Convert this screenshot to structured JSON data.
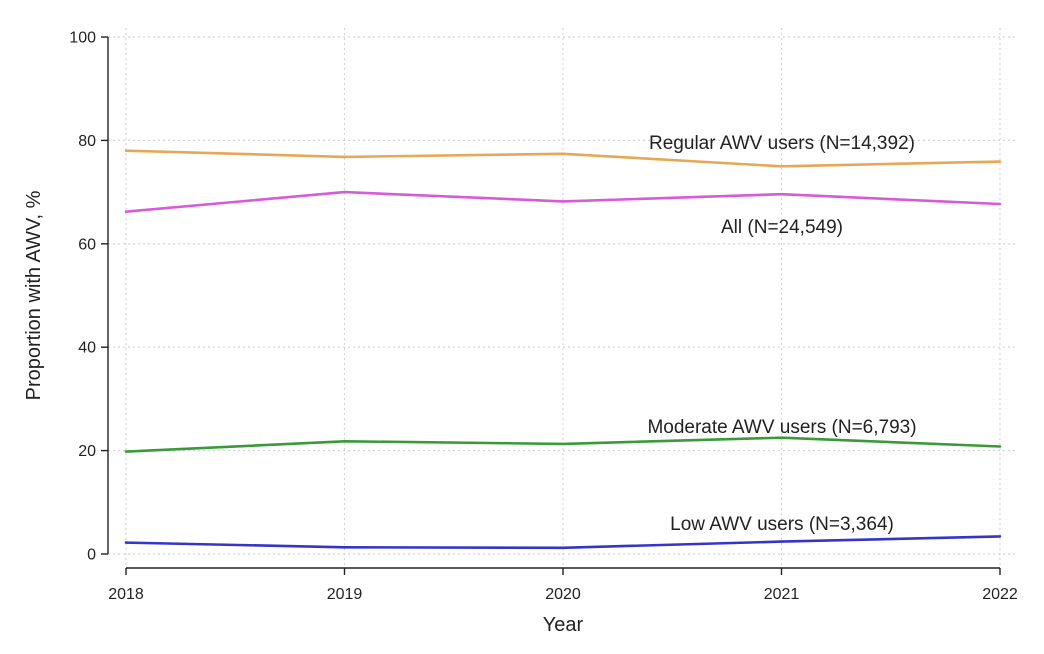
{
  "chart_data": {
    "type": "line",
    "xlabel": "Year",
    "ylabel": "Proportion with AWV, %",
    "x": [
      "2018",
      "2019",
      "2020",
      "2021",
      "2022"
    ],
    "ylim": [
      0,
      100
    ],
    "yticks": [
      "0",
      "20",
      "40",
      "60",
      "80",
      "100"
    ],
    "grid": true,
    "legend": "inline",
    "series": [
      {
        "name": "Regular AWV users (N=14,392)",
        "color": "#e6a857",
        "values": [
          78.0,
          76.8,
          77.4,
          75.0,
          75.9
        ]
      },
      {
        "name": "All (N=24,549)",
        "color": "#d65bd8",
        "values": [
          66.2,
          70.0,
          68.2,
          69.6,
          67.7
        ]
      },
      {
        "name": "Moderate AWV users (N=6,793)",
        "color": "#3a9a3a",
        "values": [
          19.8,
          21.8,
          21.3,
          22.5,
          20.8
        ]
      },
      {
        "name": "Low AWV users (N=3,364)",
        "color": "#3535c8",
        "values": [
          2.2,
          1.3,
          1.2,
          2.4,
          3.4
        ]
      }
    ]
  }
}
